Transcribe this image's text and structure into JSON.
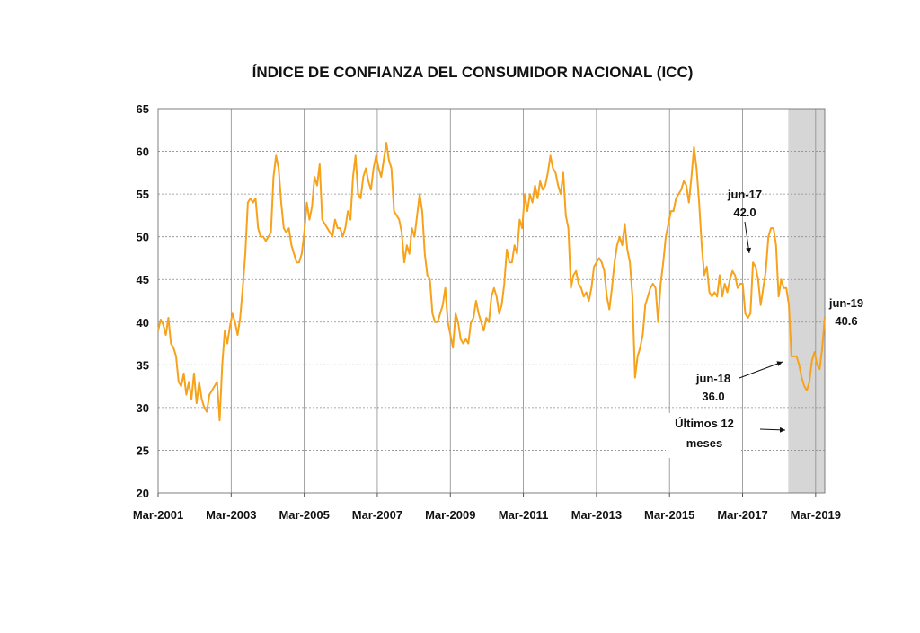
{
  "chart_data": {
    "type": "line",
    "title": "ÍNDICE DE CONFIANZA DEL CONSUMIDOR NACIONAL (ICC)",
    "xlabel": "",
    "ylabel": "",
    "ylim": [
      20,
      65
    ],
    "yticks": [
      20,
      25,
      30,
      35,
      40,
      45,
      50,
      55,
      60,
      65
    ],
    "xticks": [
      "Mar-2001",
      "Mar-2003",
      "Mar-2005",
      "Mar-2007",
      "Mar-2009",
      "Mar-2011",
      "Mar-2013",
      "Mar-2015",
      "Mar-2017",
      "Mar-2019"
    ],
    "x_start": "Mar-2001",
    "x_end": "Jun-2019",
    "grid": true,
    "legend": "none",
    "line_color": "#F7A21B",
    "shade_color": "#D6D6D6",
    "shaded_period": [
      "Jun-2018",
      "Jun-2019"
    ],
    "series": [
      {
        "values": [
          39.0,
          40.3,
          39.7,
          38.5,
          40.5,
          37.5,
          37.0,
          36.0,
          33.0,
          32.5,
          34.0,
          31.5,
          33.0,
          31.0,
          34.0,
          30.5,
          33.0,
          31.0,
          30.0,
          29.5,
          31.5,
          32.0,
          32.5,
          33.0,
          28.5,
          35.0,
          39.0,
          37.5,
          39.5,
          41.0,
          40.0,
          38.5,
          40.5,
          44.0,
          48.0,
          54.0,
          54.5,
          54.0,
          54.5,
          51.0,
          50.0,
          50.0,
          49.5,
          50.0,
          50.5,
          57.0,
          59.5,
          58.0,
          54.0,
          51.0,
          50.5,
          51.0,
          49.0,
          48.0,
          47.0,
          47.0,
          48.0,
          50.5,
          54.0,
          52.0,
          53.5,
          57.0,
          56.0,
          58.5,
          52.0,
          51.5,
          51.0,
          50.5,
          50.0,
          52.0,
          51.0,
          51.0,
          50.0,
          51.0,
          53.0,
          52.0,
          57.0,
          59.5,
          55.0,
          54.5,
          57.0,
          58.0,
          56.5,
          55.5,
          58.0,
          59.5,
          58.0,
          57.0,
          59.0,
          61.0,
          59.0,
          58.0,
          53.0,
          52.5,
          52.0,
          50.5,
          47.0,
          49.0,
          48.0,
          51.0,
          50.0,
          52.5,
          55.0,
          53.0,
          48.0,
          45.5,
          45.0,
          41.0,
          40.0,
          40.0,
          41.0,
          42.0,
          44.0,
          40.0,
          38.5,
          37.0,
          41.0,
          40.0,
          38.0,
          37.5,
          38.0,
          37.5,
          40.0,
          40.5,
          42.5,
          41.0,
          40.0,
          39.0,
          40.5,
          40.0,
          43.0,
          44.0,
          43.0,
          41.0,
          42.0,
          44.5,
          48.5,
          47.0,
          47.0,
          49.0,
          48.0,
          52.0,
          51.0,
          55.0,
          53.0,
          55.0,
          54.0,
          56.0,
          54.5,
          56.5,
          55.5,
          56.0,
          57.5,
          59.5,
          58.0,
          57.5,
          56.0,
          55.0,
          57.5,
          52.5,
          51.0,
          44.0,
          45.5,
          46.0,
          44.5,
          44.0,
          43.0,
          43.5,
          42.5,
          44.0,
          46.5,
          47.0,
          47.5,
          47.0,
          46.0,
          43.0,
          41.5,
          44.0,
          47.0,
          49.0,
          50.0,
          49.0,
          51.5,
          48.5,
          47.0,
          43.0,
          33.5,
          36.0,
          37.0,
          38.5,
          42.0,
          43.0,
          44.0,
          44.5,
          44.0,
          40.0,
          44.5,
          47.0,
          50.0,
          51.5,
          53.0,
          53.0,
          54.5,
          55.0,
          55.5,
          56.5,
          56.0,
          54.0,
          57.0,
          60.5,
          58.0,
          54.0,
          49.0,
          45.5,
          46.5,
          43.5,
          43.0,
          43.5,
          43.0,
          45.5,
          43.0,
          44.5,
          43.5,
          45.0,
          46.0,
          45.5,
          44.0,
          44.5,
          44.5,
          41.0,
          40.5,
          41.0,
          47.0,
          46.5,
          45.0,
          42.0,
          44.0,
          46.0,
          50.0,
          51.0,
          51.0,
          49.0,
          43.0,
          45.0,
          44.0,
          44.0,
          42.0,
          36.0,
          36.0,
          36.0,
          35.0,
          33.5,
          32.5,
          32.0,
          33.0,
          35.5,
          36.5,
          35.0,
          34.5,
          37.0,
          40.6
        ]
      }
    ],
    "annotations": [
      {
        "id": "jun17",
        "lines": [
          "jun-17",
          "42.0"
        ]
      },
      {
        "id": "jun18",
        "lines": [
          "jun-18",
          "36.0"
        ]
      },
      {
        "id": "jun19",
        "lines": [
          "jun-19",
          "40.6"
        ]
      },
      {
        "id": "ultimos",
        "lines": [
          "Últimos 12",
          "meses"
        ]
      }
    ]
  }
}
